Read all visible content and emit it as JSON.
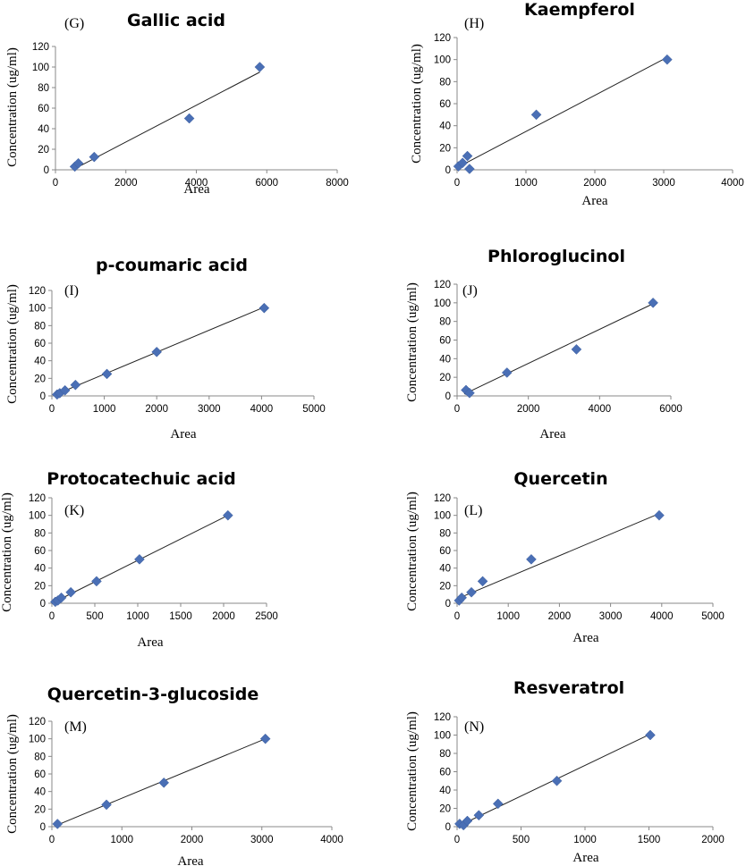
{
  "axes_labels": {
    "y": "Concentration (ug/ml)",
    "x": "Area"
  },
  "colors": {
    "marker": "#4a6fb5",
    "fit_line": "#222222",
    "axis": "#888888"
  },
  "chart_data": [
    {
      "type": "scatter",
      "panel": "(G)",
      "title": "Gallic acid",
      "xlabel": "Area",
      "ylabel": "Concentration (ug/ml)",
      "xlim": [
        0,
        8000
      ],
      "ylim": [
        0,
        120
      ],
      "xticks": [
        "0",
        "2000",
        "4000",
        "6000",
        "8000"
      ],
      "yticks": [
        "0",
        "20",
        "40",
        "60",
        "80",
        "100",
        "120"
      ],
      "points": [
        [
          550,
          3.1
        ],
        [
          650,
          6.3
        ],
        [
          1100,
          12.5
        ],
        [
          3800,
          50
        ],
        [
          5800,
          100
        ]
      ],
      "fit": [
        [
          600,
          2
        ],
        [
          5800,
          95
        ]
      ]
    },
    {
      "type": "scatter",
      "panel": "(H)",
      "title": "Kaempferol",
      "xlabel": "Area",
      "ylabel": "Concentration (ug/ml)",
      "xlim": [
        0,
        4000
      ],
      "ylim": [
        0,
        120
      ],
      "xticks": [
        "0",
        "1000",
        "2000",
        "3000",
        "4000"
      ],
      "yticks": [
        "0",
        "20",
        "40",
        "60",
        "80",
        "100",
        "120"
      ],
      "points": [
        [
          20,
          3.1
        ],
        [
          80,
          6.3
        ],
        [
          150,
          12.5
        ],
        [
          180,
          0.8
        ],
        [
          1150,
          50
        ],
        [
          3050,
          100
        ]
      ],
      "fit": [
        [
          0,
          2
        ],
        [
          3050,
          102
        ]
      ]
    },
    {
      "type": "scatter",
      "panel": "(I)",
      "title": "p-coumaric acid",
      "xlabel": "Area",
      "ylabel": "Concentration (ug/ml)",
      "xlim": [
        0,
        5000
      ],
      "ylim": [
        0,
        120
      ],
      "xticks": [
        "0",
        "1000",
        "2000",
        "3000",
        "4000",
        "5000"
      ],
      "yticks": [
        "0",
        "20",
        "40",
        "60",
        "80",
        "100",
        "120"
      ],
      "points": [
        [
          100,
          1.6
        ],
        [
          150,
          3.1
        ],
        [
          250,
          6.3
        ],
        [
          450,
          12.5
        ],
        [
          1050,
          25
        ],
        [
          2000,
          50
        ],
        [
          4050,
          100
        ]
      ],
      "fit": [
        [
          50,
          1
        ],
        [
          4050,
          101
        ]
      ]
    },
    {
      "type": "scatter",
      "panel": "(J)",
      "title": "Phloroglucinol",
      "xlabel": "Area",
      "ylabel": "Concentration (ug/ml)",
      "xlim": [
        0,
        6000
      ],
      "ylim": [
        0,
        120
      ],
      "xticks": [
        "0",
        "2000",
        "4000",
        "6000"
      ],
      "yticks": [
        "0",
        "20",
        "40",
        "60",
        "80",
        "100",
        "120"
      ],
      "points": [
        [
          250,
          6.3
        ],
        [
          350,
          3.1
        ],
        [
          1400,
          25
        ],
        [
          3350,
          50
        ],
        [
          5500,
          100
        ]
      ],
      "fit": [
        [
          200,
          2
        ],
        [
          5500,
          99
        ]
      ]
    },
    {
      "type": "scatter",
      "panel": "(K)",
      "title": "Protocatechuic acid",
      "xlabel": "Area",
      "ylabel": "Concentration (ug/ml)",
      "xlim": [
        0,
        2500
      ],
      "ylim": [
        0,
        120
      ],
      "xticks": [
        "0",
        "500",
        "1000",
        "1500",
        "2000",
        "2500"
      ],
      "yticks": [
        "0",
        "20",
        "40",
        "60",
        "80",
        "100",
        "120"
      ],
      "points": [
        [
          40,
          1.6
        ],
        [
          70,
          3.1
        ],
        [
          110,
          6.3
        ],
        [
          220,
          12.5
        ],
        [
          520,
          25
        ],
        [
          1020,
          50
        ],
        [
          2050,
          100
        ]
      ],
      "fit": [
        [
          0,
          0
        ],
        [
          2050,
          100
        ]
      ]
    },
    {
      "type": "scatter",
      "panel": "(L)",
      "title": "Quercetin",
      "xlabel": "Area",
      "ylabel": "Concentration (ug/ml)",
      "xlim": [
        0,
        5000
      ],
      "ylim": [
        0,
        120
      ],
      "xticks": [
        "0",
        "1000",
        "2000",
        "3000",
        "4000",
        "5000"
      ],
      "yticks": [
        "0",
        "20",
        "40",
        "60",
        "80",
        "100",
        "120"
      ],
      "points": [
        [
          40,
          3.1
        ],
        [
          90,
          6.3
        ],
        [
          280,
          12.5
        ],
        [
          500,
          25
        ],
        [
          1450,
          50
        ],
        [
          3950,
          100
        ]
      ],
      "fit": [
        [
          0,
          5
        ],
        [
          3950,
          102
        ]
      ]
    },
    {
      "type": "scatter",
      "panel": "(M)",
      "title": "Quercetin-3-glucoside",
      "xlabel": "Area",
      "ylabel": "Concentration (ug/ml)",
      "xlim": [
        0,
        4000
      ],
      "ylim": [
        0,
        120
      ],
      "xticks": [
        "0",
        "1000",
        "2000",
        "3000",
        "4000"
      ],
      "yticks": [
        "0",
        "20",
        "40",
        "60",
        "80",
        "100",
        "120"
      ],
      "points": [
        [
          80,
          3.1
        ],
        [
          780,
          25
        ],
        [
          1600,
          50
        ],
        [
          3050,
          100
        ]
      ],
      "fit": [
        [
          80,
          2
        ],
        [
          3050,
          100
        ]
      ]
    },
    {
      "type": "scatter",
      "panel": "(N)",
      "title": "Resveratrol",
      "xlabel": "Area",
      "ylabel": "Concentration (ug/ml)",
      "xlim": [
        0,
        2000
      ],
      "ylim": [
        0,
        120
      ],
      "xticks": [
        "0",
        "500",
        "1000",
        "1500",
        "2000"
      ],
      "yticks": [
        "0",
        "20",
        "40",
        "60",
        "80",
        "100",
        "120"
      ],
      "points": [
        [
          20,
          3.1
        ],
        [
          50,
          1.6
        ],
        [
          80,
          6.3
        ],
        [
          170,
          12.5
        ],
        [
          320,
          25
        ],
        [
          780,
          50
        ],
        [
          1510,
          100
        ]
      ],
      "fit": [
        [
          0,
          0
        ],
        [
          1510,
          101
        ]
      ]
    }
  ]
}
